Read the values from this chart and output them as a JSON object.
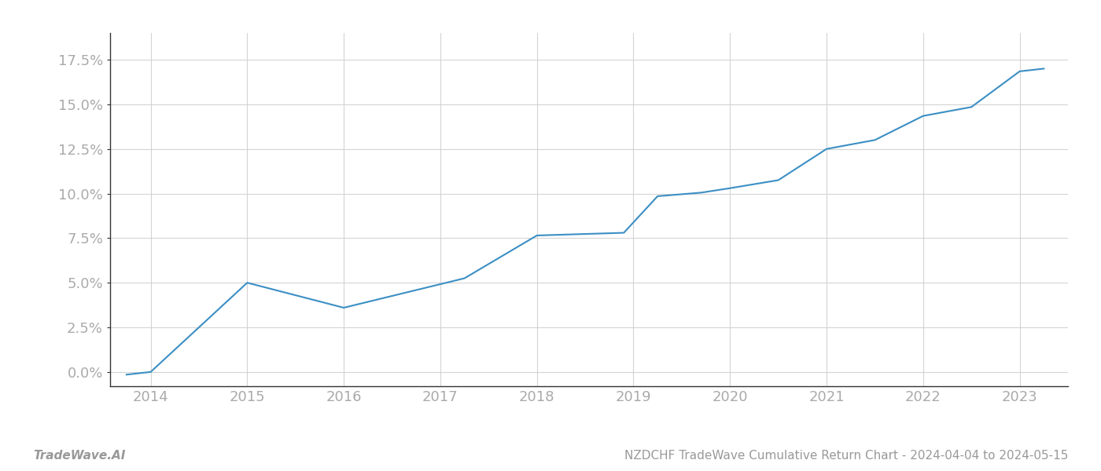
{
  "x_years": [
    2013.75,
    2014.0,
    2015.0,
    2016.0,
    2017.25,
    2018.0,
    2018.9,
    2019.25,
    2019.7,
    2020.0,
    2020.5,
    2021.0,
    2021.5,
    2022.0,
    2022.5,
    2023.0,
    2023.25
  ],
  "y_values": [
    -0.15,
    0.0,
    5.0,
    3.6,
    5.25,
    7.65,
    7.8,
    9.85,
    10.05,
    10.3,
    10.75,
    12.5,
    13.0,
    14.35,
    14.85,
    16.85,
    17.0
  ],
  "line_color": "#3b8fc4",
  "line_width": 1.5,
  "xlim": [
    2013.58,
    2023.5
  ],
  "ylim": [
    -0.8,
    19.0
  ],
  "yticks": [
    0.0,
    2.5,
    5.0,
    7.5,
    10.0,
    12.5,
    15.0,
    17.5
  ],
  "xticks": [
    2014,
    2015,
    2016,
    2017,
    2018,
    2019,
    2020,
    2021,
    2022,
    2023
  ],
  "grid_color": "#d0d0d0",
  "grid_alpha": 0.9,
  "background_color": "#ffffff",
  "footer_left": "TradeWave.AI",
  "footer_right": "NZDCHF TradeWave Cumulative Return Chart - 2024-04-04 to 2024-05-15",
  "footer_color": "#999999",
  "footer_fontsize": 11,
  "tick_label_color": "#aaaaaa",
  "tick_label_fontsize": 13,
  "spine_color": "#333333"
}
